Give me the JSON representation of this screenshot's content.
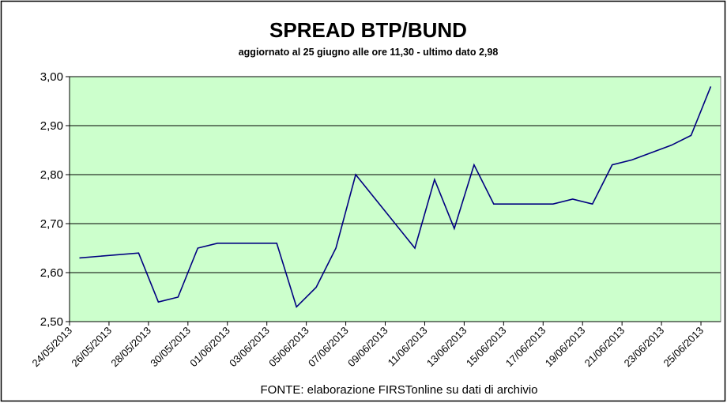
{
  "chart_data": {
    "type": "line",
    "title": "SPREAD  BTP/BUND",
    "subtitle": "aggiornato al 25 giugno alle ore 11,30 - ultimo dato 2,98",
    "source": "FONTE: elaborazione FIRSTonline su dati di archivio",
    "x": [
      "24/05/2013",
      "27/05/2013",
      "28/05/2013",
      "29/05/2013",
      "30/05/2013",
      "31/05/2013",
      "03/06/2013",
      "04/06/2013",
      "05/06/2013",
      "06/06/2013",
      "07/06/2013",
      "10/06/2013",
      "11/06/2013",
      "12/06/2013",
      "13/06/2013",
      "14/06/2013",
      "17/06/2013",
      "18/06/2013",
      "19/06/2013",
      "20/06/2013",
      "21/06/2013",
      "23/06/2013",
      "24/06/2013",
      "25/06/2013"
    ],
    "series": [
      {
        "color": "#000080",
        "values": [
          2.63,
          2.64,
          2.54,
          2.55,
          2.65,
          2.66,
          2.66,
          2.53,
          2.57,
          2.65,
          2.8,
          2.65,
          2.79,
          2.69,
          2.82,
          2.74,
          2.74,
          2.75,
          2.74,
          2.82,
          2.83,
          2.86,
          2.88,
          2.98
        ]
      }
    ],
    "xlim": [
      "24/05/2013",
      "26/06/2013"
    ],
    "xticks": [
      "24/05/2013",
      "26/05/2013",
      "28/05/2013",
      "30/05/2013",
      "01/06/2013",
      "03/06/2013",
      "05/06/2013",
      "07/06/2013",
      "09/06/2013",
      "11/06/2013",
      "13/06/2013",
      "15/06/2013",
      "17/06/2013",
      "19/06/2013",
      "21/06/2013",
      "23/06/2013",
      "25/06/2013"
    ],
    "ylim": [
      2.5,
      3.0
    ],
    "yticks": [
      {
        "value": 2.5,
        "label": "2,50"
      },
      {
        "value": 2.6,
        "label": "2,60"
      },
      {
        "value": 2.7,
        "label": "2,70"
      },
      {
        "value": 2.8,
        "label": "2,80"
      },
      {
        "value": 2.9,
        "label": "2,90"
      },
      {
        "value": 3.0,
        "label": "3,00"
      }
    ],
    "grid": true,
    "plot_background": "#ccffcc"
  }
}
